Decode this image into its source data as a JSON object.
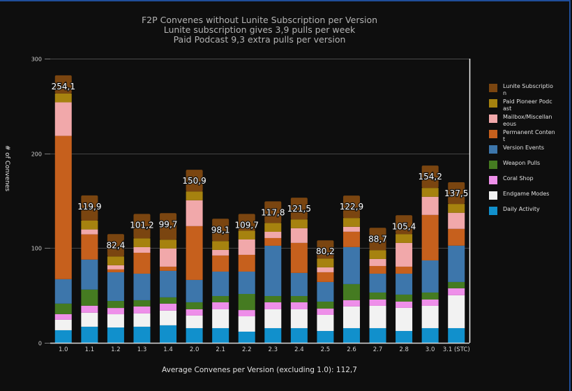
{
  "chart_data": {
    "type": "bar",
    "stacked": true,
    "title": "F2P Convenes without Lunite Subscription per Version",
    "subtitle_lines": [
      "Lunite subscription gives 3,9 pulls per week",
      "Paid Podcast 9,3 extra pulls per version"
    ],
    "xlabel": "",
    "ylabel": "# of Convenes",
    "ylim": [
      0,
      300
    ],
    "yticks": [
      0,
      100,
      200,
      300
    ],
    "grid": true,
    "legend_position": "right",
    "categories": [
      "1.0",
      "1.1",
      "1.2",
      "1.3",
      "1.4",
      "2.0",
      "2.1",
      "2.2",
      "2.3",
      "2.4",
      "2.5",
      "2.6",
      "2.7",
      "2.8",
      "3.0",
      "3.1 (STC)"
    ],
    "totals_labels": [
      "254,1",
      "119,9",
      "82,4",
      "101,2",
      "99,7",
      "150,9",
      "98,1",
      "109,7",
      "117,8",
      "121,5",
      "80,2",
      "122,9",
      "88,7",
      "105,4",
      "154,2",
      "137,5"
    ],
    "series": [
      {
        "name": "Daily Activity",
        "color": "#1190cc",
        "values": [
          13.3,
          17.0,
          16.2,
          17.0,
          18.5,
          15.5,
          15.5,
          11.8,
          15.5,
          15.5,
          12.5,
          15.5,
          15.5,
          12.5,
          15.5,
          15.5
        ]
      },
      {
        "name": "Endgame Modes",
        "color": "#f2f2f2",
        "values": [
          11.1,
          14.8,
          14.0,
          14.0,
          15.5,
          13.3,
          19.9,
          16.2,
          19.9,
          19.9,
          17.0,
          22.9,
          23.6,
          24.4,
          23.6,
          34.7
        ]
      },
      {
        "name": "Coral Shop",
        "color": "#ee8fe9",
        "values": [
          5.9,
          7.4,
          6.6,
          7.4,
          7.4,
          6.6,
          7.4,
          6.6,
          7.4,
          7.4,
          6.6,
          6.6,
          6.6,
          6.6,
          6.6,
          7.4
        ]
      },
      {
        "name": "Weapon Pulls",
        "color": "#457b21",
        "values": [
          11.1,
          17.0,
          7.4,
          6.6,
          6.6,
          7.4,
          6.6,
          17.0,
          6.6,
          6.6,
          7.4,
          17.0,
          7.4,
          7.4,
          7.4,
          6.6
        ]
      },
      {
        "name": "Version Events",
        "color": "#3d76ab",
        "values": [
          25.8,
          31.7,
          30.3,
          28.0,
          28.0,
          23.6,
          25.8,
          23.6,
          53.1,
          24.4,
          20.7,
          39.1,
          19.9,
          22.1,
          33.9,
          38.4
        ]
      },
      {
        "name": "Permanent Content",
        "color": "#c6601d",
        "values": [
          151.3,
          26.6,
          3.0,
          22.1,
          4.4,
          56.8,
          17.0,
          17.7,
          8.1,
          31.7,
          10.3,
          16.2,
          8.1,
          7.4,
          48.0,
          17.7
        ]
      },
      {
        "name": "Mailbox/Miscellaneous",
        "color": "#f1a8aa",
        "values": [
          35.4,
          5.2,
          4.4,
          5.9,
          19.2,
          27.3,
          5.9,
          16.2,
          6.6,
          15.5,
          5.2,
          5.2,
          7.4,
          25.1,
          19.2,
          17.0
        ]
      },
      {
        "name": "Paid Pioneer Podcast",
        "color": "#a6820f",
        "values": [
          9.3,
          9.3,
          9.3,
          9.3,
          9.3,
          9.3,
          9.3,
          9.3,
          9.3,
          9.3,
          9.3,
          9.3,
          9.3,
          9.3,
          9.3,
          9.3
        ]
      },
      {
        "name": "Lunite Subscription",
        "color": "#7a4510",
        "values": [
          19.2,
          26.6,
          23.6,
          25.8,
          28.0,
          22.9,
          23.6,
          17.7,
          22.9,
          22.9,
          19.2,
          23.6,
          23.6,
          19.9,
          23.6,
          22.9
        ]
      }
    ],
    "annotation": "Average Convenes per Version (excluding 1.0): 112,7"
  },
  "legend": [
    {
      "label": "Lunite Subscription",
      "color": "#7a4510"
    },
    {
      "label": "Paid Pioneer Podcast",
      "color": "#a6820f"
    },
    {
      "label": "Mailbox/Miscellaneous",
      "color": "#f1a8aa"
    },
    {
      "label": "Permanent Content",
      "color": "#c6601d"
    },
    {
      "label": "Version Events",
      "color": "#3d76ab"
    },
    {
      "label": "Weapon Pulls",
      "color": "#457b21"
    },
    {
      "label": "Coral Shop",
      "color": "#ee8fe9"
    },
    {
      "label": "Endgame Modes",
      "color": "#f2f2f2"
    },
    {
      "label": "Daily Activity",
      "color": "#1190cc"
    }
  ]
}
